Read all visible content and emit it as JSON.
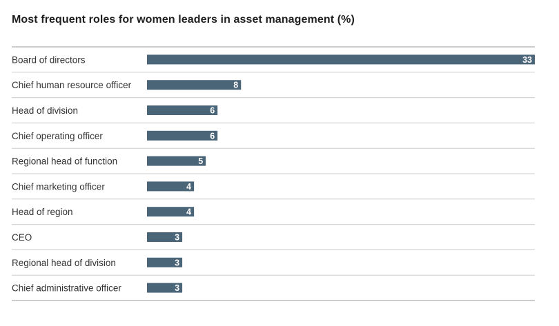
{
  "chart_data": {
    "type": "bar",
    "orientation": "horizontal",
    "title": "Most frequent roles for women leaders in asset management (%)",
    "categories": [
      "Board of directors",
      "Chief human resource officer",
      "Head of division",
      "Chief operating officer",
      "Regional head of function",
      "Chief marketing officer",
      "Head of region",
      "CEO",
      "Regional head of division",
      "Chief administrative officer"
    ],
    "values": [
      33,
      8,
      6,
      6,
      5,
      4,
      4,
      3,
      3,
      3
    ],
    "xlim": [
      0,
      33
    ],
    "grid": false,
    "data_labels": true,
    "colors": {
      "bar": "#4a6578",
      "separator": "#cccccc",
      "axis_line": "#999999",
      "label_text": "#333333",
      "value_text": "#ffffff"
    }
  }
}
